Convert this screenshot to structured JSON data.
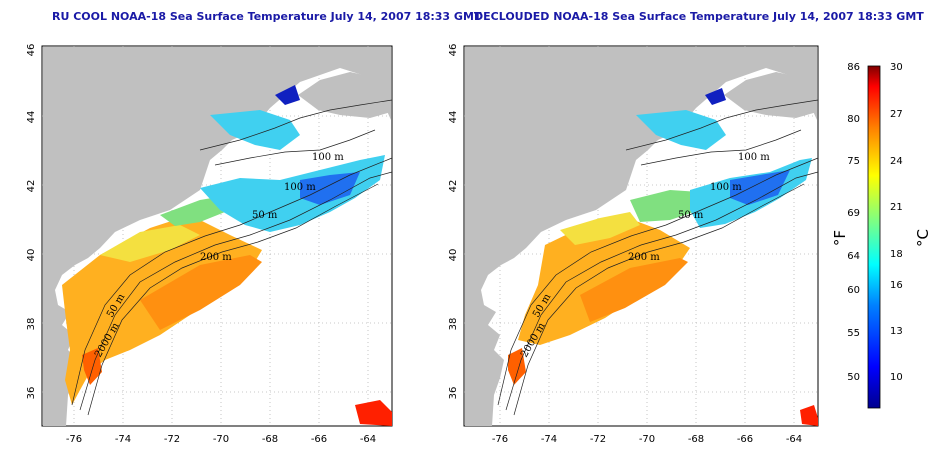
{
  "panels": [
    {
      "title": "RU COOL NOAA-18 Sea Surface Temperature July 14, 2007 18:33 GMT",
      "contour_labels": [
        "100 m",
        "100 m",
        "50 m",
        "200 m",
        "50 m",
        "2000 m"
      ]
    },
    {
      "title": "DECLOUDED NOAA-18 Sea Surface Temperature July 14, 2007 18:33 GMT",
      "contour_labels": [
        "100 m",
        "100 m",
        "50 m",
        "200 m",
        "50 m",
        "2000 m"
      ]
    }
  ],
  "axes": {
    "lat_ticks": [
      "46",
      "44",
      "42",
      "40",
      "38",
      "36"
    ],
    "lon_ticks": [
      "-76",
      "-74",
      "-72",
      "-70",
      "-68",
      "-66",
      "-64"
    ]
  },
  "colorbar": {
    "fahrenheit_ticks": [
      "86",
      "80",
      "75",
      "69",
      "64",
      "60",
      "55",
      "50"
    ],
    "celsius_ticks": [
      "30",
      "27",
      "24",
      "21",
      "18",
      "16",
      "13",
      "10"
    ],
    "fahrenheit_label": "°F",
    "celsius_label": "°C",
    "colors": [
      "#00008f",
      "#0000ff",
      "#0080ff",
      "#00ffff",
      "#80ff80",
      "#ffff00",
      "#ff8000",
      "#ff0000",
      "#800000"
    ]
  },
  "colors": {
    "land": "#c0c0c0",
    "ocean": "#ffffff",
    "grid": "#b8b8b8",
    "title": "#1a1aa6"
  }
}
